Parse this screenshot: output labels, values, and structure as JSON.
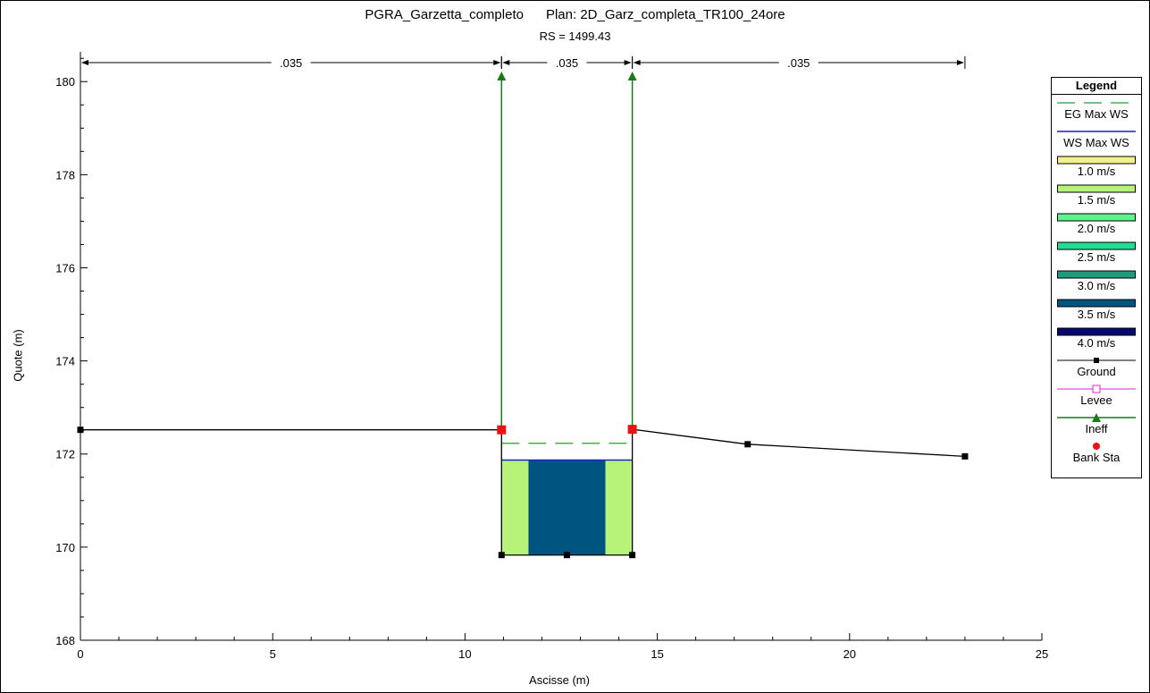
{
  "chart_data": {
    "type": "cross-section",
    "title": "PGRA_Garzetta_completo      Plan: 2D_Garz_completa_TR100_24ore",
    "subtitle": "RS = 1499.43",
    "xlabel": "Ascisse (m)",
    "ylabel": "Quote (m)",
    "xlim": [
      0,
      25
    ],
    "ylim": [
      168,
      180.6
    ],
    "xticks": [
      0,
      5,
      10,
      15,
      20,
      25
    ],
    "yticks": [
      168,
      170,
      172,
      174,
      176,
      178,
      180
    ],
    "manning": [
      {
        "label": ".035",
        "x_start": 0,
        "x_end": 10.95
      },
      {
        "label": ".035",
        "x_start": 10.95,
        "x_end": 14.35
      },
      {
        "label": ".035",
        "x_start": 14.35,
        "x_end": 23.0
      }
    ],
    "ground": [
      [
        0,
        172.52
      ],
      [
        10.95,
        172.52
      ],
      [
        10.95,
        169.83
      ],
      [
        12.65,
        169.83
      ],
      [
        14.35,
        169.83
      ],
      [
        14.35,
        172.53
      ],
      [
        17.35,
        172.21
      ],
      [
        23.0,
        171.95
      ]
    ],
    "bank_stations": [
      [
        10.95,
        172.52
      ],
      [
        14.35,
        172.53
      ]
    ],
    "ineffective": [
      [
        10.95,
        180.1
      ],
      [
        14.35,
        180.1
      ]
    ],
    "eg_max_ws": 172.23,
    "ws_max_ws": 171.87,
    "velocity_fill": [
      {
        "x_start": 10.95,
        "x_end": 11.65,
        "class": "1.5 m/s",
        "color": "#b7f378"
      },
      {
        "x_start": 11.65,
        "x_end": 13.65,
        "class": "3.5 m/s",
        "color": "#005580"
      },
      {
        "x_start": 13.65,
        "x_end": 14.35,
        "class": "1.5 m/s",
        "color": "#b7f378"
      }
    ],
    "legend": {
      "title": "Legend",
      "items": [
        {
          "label": "EG Max WS",
          "kind": "dash",
          "color": "#2aa02a"
        },
        {
          "label": "WS Max WS",
          "kind": "line",
          "color": "#1f1fcf"
        },
        {
          "label": "1.0 m/s",
          "kind": "box",
          "color": "#f2f08c"
        },
        {
          "label": "1.5 m/s",
          "kind": "box",
          "color": "#b7f378"
        },
        {
          "label": "2.0 m/s",
          "kind": "box",
          "color": "#5cf58a"
        },
        {
          "label": "2.5 m/s",
          "kind": "box",
          "color": "#22dc94"
        },
        {
          "label": "3.0 m/s",
          "kind": "box",
          "color": "#1f9a7a"
        },
        {
          "label": "3.5 m/s",
          "kind": "box",
          "color": "#005580"
        },
        {
          "label": "4.0 m/s",
          "kind": "box",
          "color": "#06086e"
        },
        {
          "label": "Ground",
          "kind": "line-square",
          "color": "#000000"
        },
        {
          "label": "Levee",
          "kind": "line-opensquare",
          "color": "#e020d0"
        },
        {
          "label": "Ineff",
          "kind": "line-triangle",
          "color": "#1a7a1a"
        },
        {
          "label": "Bank Sta",
          "kind": "dot",
          "color": "#ee1111"
        }
      ]
    }
  }
}
